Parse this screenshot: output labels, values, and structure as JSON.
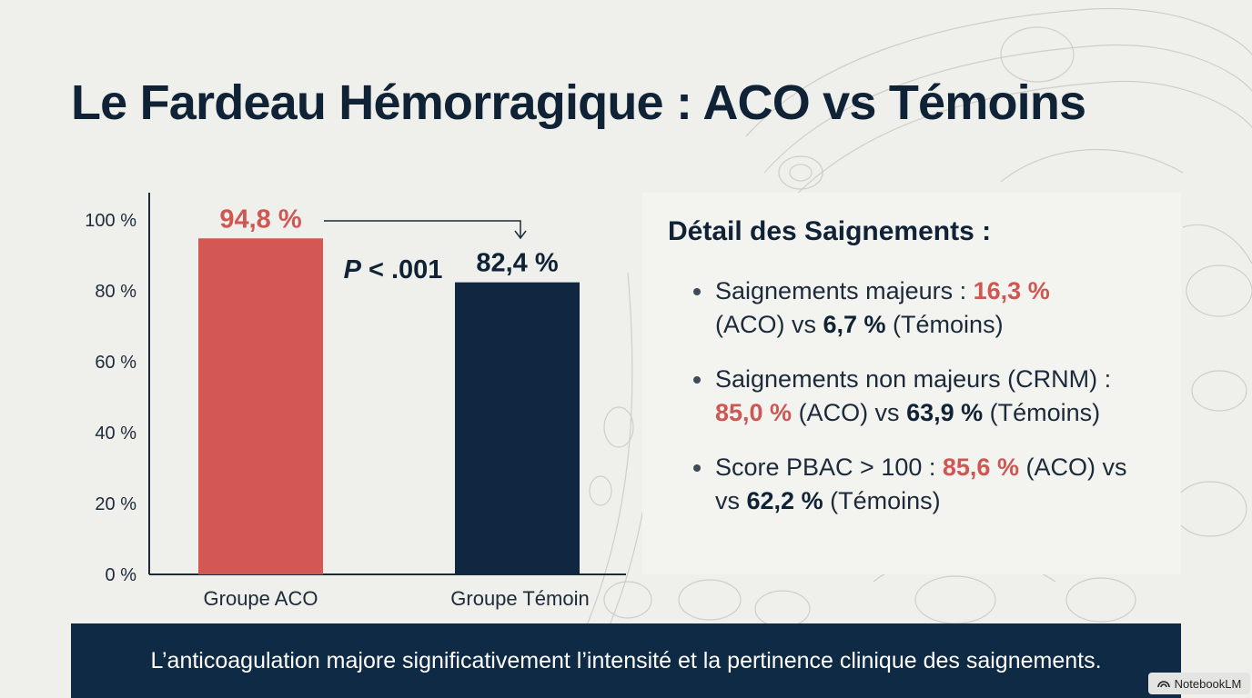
{
  "title": "Le Fardeau Hémorragique : ACO vs Témoins",
  "chart_data": {
    "type": "bar",
    "categories": [
      "Groupe ACO",
      "Groupe Témoin"
    ],
    "values": [
      94.8,
      82.4
    ],
    "value_labels": [
      "94,8 %",
      "82,4 %"
    ],
    "ylim": [
      0,
      100
    ],
    "yticks": [
      {
        "value": 0,
        "label": "0 %"
      },
      {
        "value": 20,
        "label": "20 %"
      },
      {
        "value": 40,
        "label": "40 %"
      },
      {
        "value": 60,
        "label": "60 %"
      },
      {
        "value": 80,
        "label": "80 %"
      },
      {
        "value": 100,
        "label": "100 %"
      }
    ],
    "bar_colors": [
      "#d35752",
      "#0f2740"
    ],
    "annotation": {
      "text_italic": "P",
      "text_rest": " < .001"
    },
    "grid": false
  },
  "panel": {
    "title": "Détail des Saignements :",
    "items": [
      {
        "label": "Saignements majeurs : ",
        "aco": "16,3 %",
        "mid1": "(ACO) vs ",
        "temoin": "6,7 %",
        "end": " (Témoins)"
      },
      {
        "label": "Saignements non majeurs (CRNM) : ",
        "aco": "85,0 %",
        "mid1": " (ACO) vs ",
        "temoin": "63,9 %",
        "end": " (Témoins)"
      },
      {
        "label": "Score PBAC > 100 : ",
        "aco": "85,6 %",
        "mid1": " (ACO) vs ",
        "temoin": "62,2 %",
        "end": " (Témoins)"
      }
    ]
  },
  "footer": "L’anticoagulation majore significativement l’intensité et la pertinence clinique des saignements.",
  "badge": "NotebookLM"
}
